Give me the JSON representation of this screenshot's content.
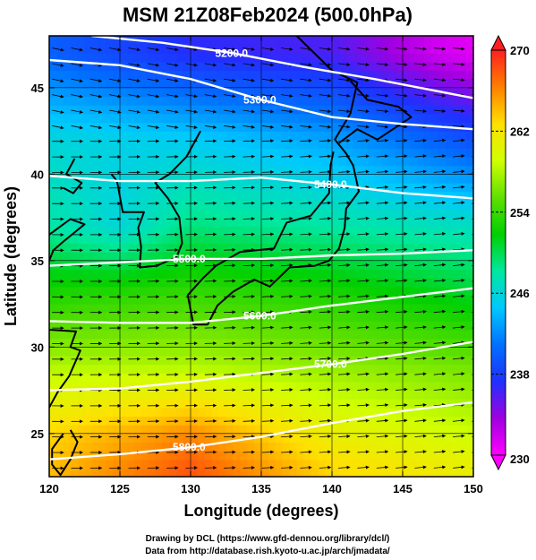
{
  "chart_data": {
    "type": "heatmap",
    "title": "MSM 21Z08Feb2024 (500.0hPa)",
    "xlabel": "Longitude (degrees)",
    "ylabel": "Latitude  (degrees)",
    "xlim": [
      120,
      150
    ],
    "ylim": [
      22.5,
      48
    ],
    "x_ticks": [
      120,
      125,
      130,
      135,
      140,
      145,
      150
    ],
    "x_tick_labels": [
      "120",
      "125",
      "130",
      "135",
      "140",
      "145",
      "150"
    ],
    "y_ticks": [
      25,
      30,
      35,
      40,
      45
    ],
    "y_tick_labels": [
      "25",
      "30",
      "35",
      "40",
      "45"
    ],
    "colorbar": {
      "min": 230,
      "max": 270,
      "ticks": [
        230,
        238,
        246,
        254,
        262,
        270
      ],
      "tick_labels": [
        "230",
        "238",
        "246",
        "254",
        "262",
        "270"
      ],
      "colors": [
        "#ff00ff",
        "#a000e0",
        "#2030ff",
        "#0070ff",
        "#00c8ff",
        "#00e8a0",
        "#00d000",
        "#60e000",
        "#d0ff00",
        "#ffe000",
        "#ff8000",
        "#ff2020"
      ]
    },
    "temperature_field_approx": [
      {
        "lat": 47,
        "lon_values": [
          [
            120,
            240
          ],
          [
            130,
            237
          ],
          [
            140,
            236
          ],
          [
            147,
            232
          ],
          [
            150,
            231
          ]
        ]
      },
      {
        "lat": 42,
        "lon_values": [
          [
            120,
            246
          ],
          [
            130,
            245
          ],
          [
            140,
            243
          ],
          [
            150,
            239
          ]
        ]
      },
      {
        "lat": 37,
        "lon_values": [
          [
            120,
            248
          ],
          [
            125,
            246
          ],
          [
            130,
            249
          ],
          [
            140,
            248
          ],
          [
            150,
            247
          ]
        ]
      },
      {
        "lat": 33,
        "lon_values": [
          [
            120,
            253
          ],
          [
            130,
            254
          ],
          [
            140,
            253
          ],
          [
            150,
            251
          ]
        ]
      },
      {
        "lat": 29,
        "lon_values": [
          [
            120,
            258
          ],
          [
            130,
            258
          ],
          [
            140,
            257
          ],
          [
            150,
            256
          ]
        ]
      },
      {
        "lat": 25,
        "lon_values": [
          [
            120,
            263
          ],
          [
            130,
            266
          ],
          [
            140,
            261
          ],
          [
            150,
            259
          ]
        ]
      },
      {
        "lat": 23,
        "lon_values": [
          [
            120,
            264
          ],
          [
            130,
            268
          ],
          [
            140,
            263
          ],
          [
            150,
            261
          ]
        ]
      }
    ],
    "height_contours": [
      {
        "label": "5200.0",
        "points": [
          [
            123,
            48
          ],
          [
            128,
            47.6
          ],
          [
            133,
            47
          ],
          [
            138,
            46.2
          ],
          [
            143,
            45.5
          ],
          [
            150,
            44.4
          ]
        ]
      },
      {
        "label": "5300.0",
        "points": [
          [
            120,
            46.6
          ],
          [
            125,
            46.3
          ],
          [
            130,
            45.5
          ],
          [
            135,
            44.3
          ],
          [
            140,
            43.3
          ],
          [
            145,
            42.9
          ],
          [
            150,
            42.6
          ]
        ]
      },
      {
        "label": "5400.0",
        "points": [
          [
            120,
            39.9
          ],
          [
            125,
            39.6
          ],
          [
            130,
            39.6
          ],
          [
            135,
            39.8
          ],
          [
            140,
            39.4
          ],
          [
            145,
            38.9
          ],
          [
            150,
            38.6
          ]
        ]
      },
      {
        "label": "5500.0",
        "points": [
          [
            120,
            34.7
          ],
          [
            125,
            34.9
          ],
          [
            130,
            35.1
          ],
          [
            135,
            35.1
          ],
          [
            140,
            35.3
          ],
          [
            145,
            35.4
          ],
          [
            150,
            35.6
          ]
        ]
      },
      {
        "label": "5600.0",
        "points": [
          [
            120,
            31.5
          ],
          [
            125,
            31.4
          ],
          [
            130,
            31.4
          ],
          [
            135,
            31.8
          ],
          [
            140,
            32.4
          ],
          [
            145,
            32.9
          ],
          [
            150,
            33.4
          ]
        ]
      },
      {
        "label": "5700.0",
        "points": [
          [
            120,
            27.5
          ],
          [
            125,
            27.6
          ],
          [
            130,
            28.0
          ],
          [
            135,
            28.5
          ],
          [
            140,
            29.0
          ],
          [
            145,
            29.6
          ],
          [
            150,
            30.3
          ]
        ]
      },
      {
        "label": "5800.0",
        "points": [
          [
            120,
            23.5
          ],
          [
            125,
            23.8
          ],
          [
            130,
            24.2
          ],
          [
            135,
            24.8
          ],
          [
            140,
            25.6
          ],
          [
            145,
            26.3
          ],
          [
            150,
            26.8
          ]
        ]
      }
    ],
    "wind_direction": "westerly (left-to-right arrows across the domain)",
    "grid": true,
    "colorbar_placement": "right"
  },
  "credits": {
    "line1": "Drawing by DCL (https://www.gfd-dennou.org/library/dcl/)",
    "line2": "Data from http://database.rish.kyoto-u.ac.jp/arch/jmadata/"
  }
}
